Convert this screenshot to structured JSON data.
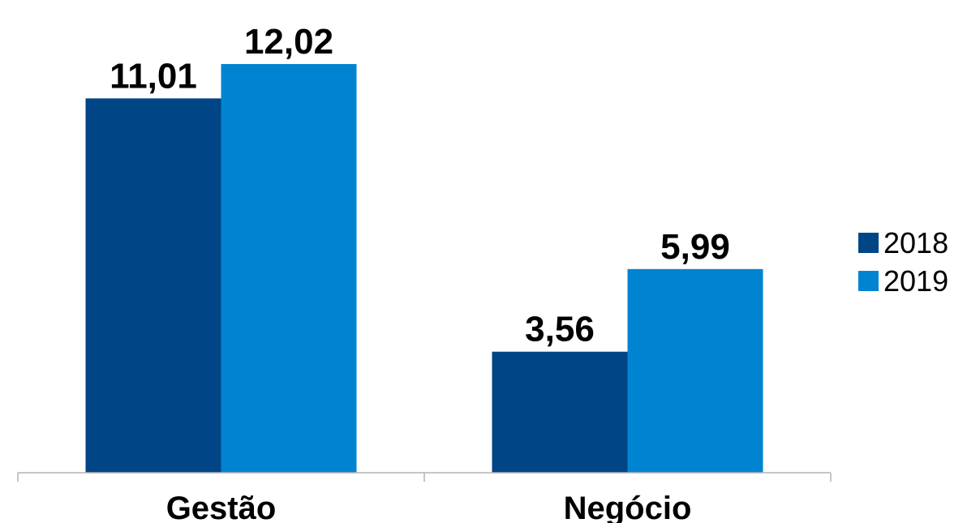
{
  "chart_data": {
    "type": "bar",
    "title": "",
    "xlabel": "",
    "ylabel": "",
    "categories": [
      "Gestão",
      "Negócio"
    ],
    "series": [
      {
        "name": "2018",
        "values": [
          11.01,
          3.56
        ],
        "labels": [
          "11,01",
          "3,56"
        ],
        "color": "#004586"
      },
      {
        "name": "2019",
        "values": [
          12.02,
          5.99
        ],
        "labels": [
          "12,02",
          "5,99"
        ],
        "color": "#0084d1"
      }
    ],
    "ylim": [
      0,
      12.02
    ],
    "grid": false,
    "legend_position": "right"
  }
}
